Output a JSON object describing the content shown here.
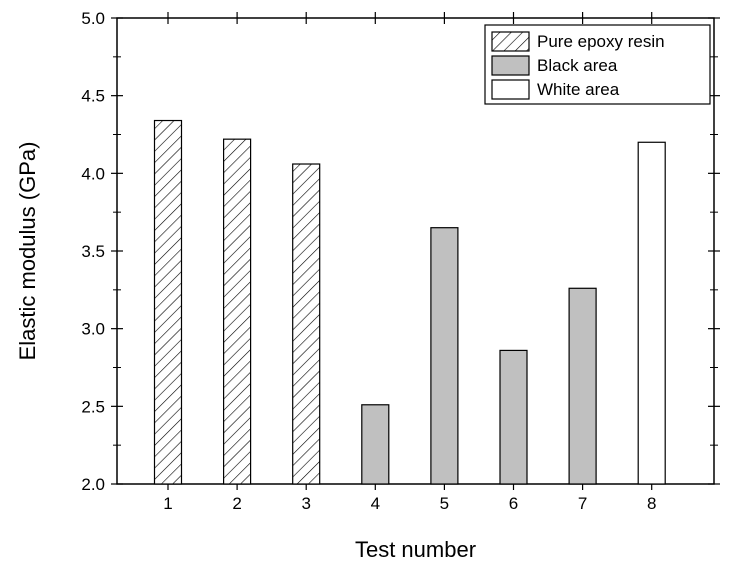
{
  "chart_data": {
    "type": "bar",
    "categories": [
      "1",
      "2",
      "3",
      "4",
      "5",
      "6",
      "7",
      "8"
    ],
    "values": [
      4.34,
      4.22,
      4.06,
      2.51,
      3.65,
      2.86,
      3.26,
      4.2
    ],
    "groups": [
      "Pure epoxy resin",
      "Pure epoxy resin",
      "Pure epoxy resin",
      "Black area",
      "Black area",
      "Black area",
      "Black area",
      "White area"
    ],
    "xlabel": "Test number",
    "ylabel": "Elastic modulus (GPa)",
    "ylim": [
      2.0,
      5.0
    ],
    "yticks": [
      "2.0",
      "2.5",
      "3.0",
      "3.5",
      "4.0",
      "4.5",
      "5.0"
    ],
    "legend": [
      {
        "name": "Pure epoxy resin",
        "style": "hatched"
      },
      {
        "name": "Black area",
        "style": "gray",
        "color": "#c0c0c0"
      },
      {
        "name": "White area",
        "style": "white",
        "color": "#ffffff"
      }
    ],
    "legend_position": "top-right",
    "grid": false
  }
}
